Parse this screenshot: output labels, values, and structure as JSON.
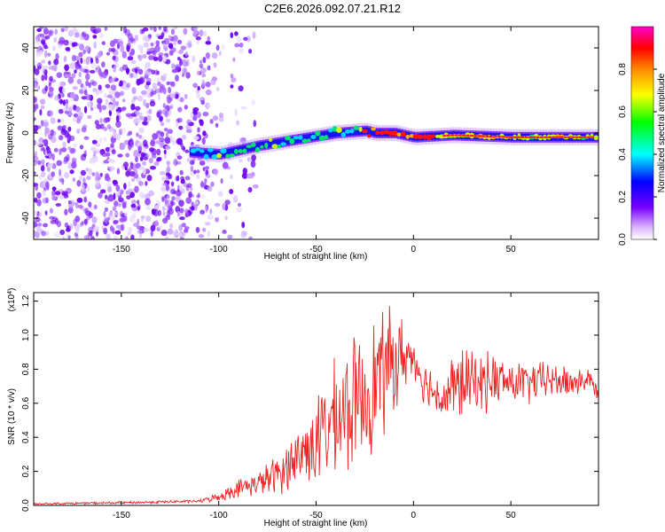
{
  "title": "C2E6.2026.092.07.21.R12",
  "chart_data": [
    {
      "type": "heatmap",
      "xlabel": "Height of straight line (km)",
      "ylabel": "Frequency (Hz)",
      "xlim": [
        -195,
        95
      ],
      "ylim": [
        -50,
        50
      ],
      "xticks": [
        -150,
        -100,
        -50,
        0,
        50
      ],
      "yticks": [
        -40,
        -20,
        0,
        20,
        40
      ],
      "colorbar": {
        "label": "Normalized spectral amplitude",
        "range": [
          0.0,
          1.0
        ],
        "ticks": [
          0.0,
          0.2,
          0.4,
          0.6,
          0.8
        ]
      },
      "signal_trace": {
        "x": [
          -115,
          -100,
          -80,
          -60,
          -40,
          -25,
          -20,
          -10,
          0,
          20,
          50,
          95
        ],
        "freq": [
          -9,
          -10,
          -6,
          -3,
          0,
          1,
          0,
          0,
          -2,
          -1,
          -2,
          -2
        ]
      },
      "noise_region_x": [
        -195,
        -105
      ],
      "notes": "Broadband noise for heights below about -105 km; a coherent signal band near 0 Hz from about -115 km to 95 km, strongest (red) between -25 and 10 km."
    },
    {
      "type": "line",
      "xlabel": "Height of straight line (km)",
      "ylabel": "SNR (10 * v/v)",
      "y_multiplier": "(x10",
      "y_exponent": "4",
      "xlim": [
        -195,
        95
      ],
      "ylim": [
        0.0,
        1.25
      ],
      "xticks": [
        -150,
        -100,
        -50,
        0,
        50
      ],
      "yticks": [
        0.0,
        0.2,
        0.4,
        0.6,
        0.8,
        1.0,
        1.2
      ],
      "series": [
        {
          "name": "SNR",
          "color": "#ee2222",
          "x": [
            -195,
            -150,
            -110,
            -100,
            -90,
            -80,
            -70,
            -60,
            -50,
            -45,
            -40,
            -35,
            -30,
            -25,
            -20,
            -15,
            -10,
            -5,
            0,
            5,
            10,
            15,
            20,
            25,
            30,
            35,
            40,
            50,
            60,
            70,
            80,
            90,
            95
          ],
          "y": [
            0.01,
            0.015,
            0.025,
            0.05,
            0.1,
            0.13,
            0.18,
            0.28,
            0.38,
            0.45,
            0.5,
            0.55,
            0.6,
            0.65,
            0.72,
            0.8,
            0.84,
            0.88,
            0.88,
            0.73,
            0.68,
            0.62,
            0.68,
            0.72,
            0.72,
            0.72,
            0.74,
            0.72,
            0.72,
            0.74,
            0.72,
            0.74,
            0.66
          ],
          "spread": [
            0.005,
            0.01,
            0.01,
            0.03,
            0.06,
            0.08,
            0.14,
            0.2,
            0.3,
            0.35,
            0.4,
            0.42,
            0.45,
            0.45,
            0.45,
            0.42,
            0.38,
            0.25,
            0.12,
            0.15,
            0.15,
            0.15,
            0.25,
            0.25,
            0.22,
            0.2,
            0.2,
            0.15,
            0.15,
            0.12,
            0.12,
            0.08,
            0.05
          ]
        }
      ]
    }
  ]
}
